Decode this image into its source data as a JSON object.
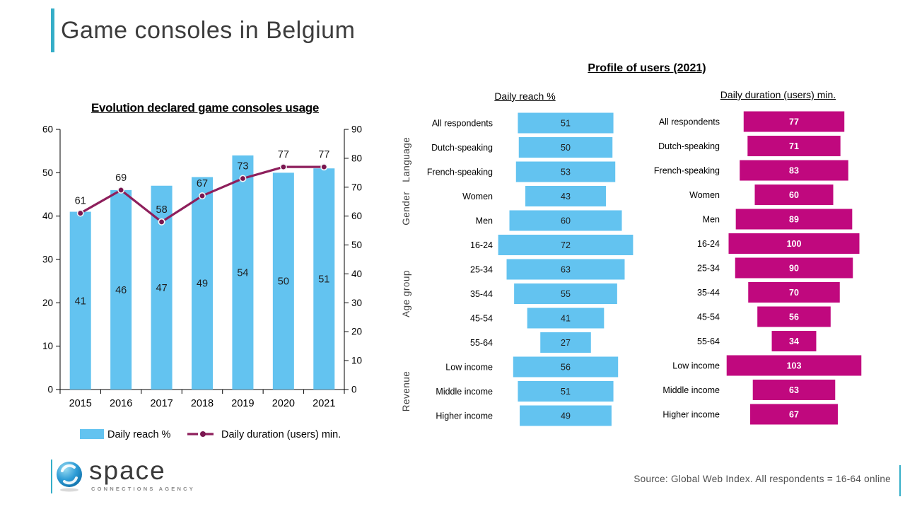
{
  "slide": {
    "title": "Game consoles in Belgium",
    "source": "Source: Global Web Index. All respondents = 16-64 online",
    "logo": {
      "name": "space",
      "tagline": "CONNECTIONS AGENCY"
    }
  },
  "profile": {
    "title": "Profile of users (2021)"
  },
  "colors": {
    "accent_teal": "#35aec8",
    "bar_blue": "#63c3f0",
    "bar_magenta": "#c0087e",
    "line_purple": "#8e1f5c",
    "marker_fill": "#7a1650",
    "value_dark": "#1f1f1f",
    "value_light": "#ffffff"
  },
  "chart_data": [
    {
      "type": "bar",
      "subtype": "combo-bar-line",
      "title": "Evolution declared game consoles usage",
      "categories": [
        "2015",
        "2016",
        "2017",
        "2018",
        "2019",
        "2020",
        "2021"
      ],
      "series": [
        {
          "name": "Daily reach %",
          "kind": "bar",
          "axis": "left",
          "color": "#63c3f0",
          "values": [
            41,
            46,
            47,
            49,
            54,
            50,
            51
          ]
        },
        {
          "name": "Daily duration (users) min.",
          "kind": "line",
          "axis": "right",
          "color": "#8e1f5c",
          "values": [
            61,
            69,
            58,
            67,
            73,
            77,
            77
          ]
        }
      ],
      "left_axis": {
        "min": 0,
        "max": 60,
        "step": 10
      },
      "right_axis": {
        "min": 0,
        "max": 90,
        "step": 10
      },
      "grid": false,
      "legend_position": "bottom"
    },
    {
      "type": "bar",
      "subtype": "horizontal-centered",
      "title": "Daily reach %",
      "color": "#63c3f0",
      "categories": [
        "All respondents",
        "Dutch-speaking",
        "French-speaking",
        "Women",
        "Men",
        "16-24",
        "25-34",
        "35-44",
        "45-54",
        "55-64",
        "Low income",
        "Middle income",
        "Higher income"
      ],
      "values": [
        51,
        50,
        53,
        43,
        60,
        72,
        63,
        55,
        41,
        27,
        56,
        51,
        49
      ],
      "groups": [
        {
          "label": "Language",
          "rows": [
            1,
            2
          ]
        },
        {
          "label": "Gender",
          "rows": [
            3,
            4
          ]
        },
        {
          "label": "Age group",
          "rows": [
            5,
            9
          ]
        },
        {
          "label": "Revenue",
          "rows": [
            10,
            12
          ]
        }
      ]
    },
    {
      "type": "bar",
      "subtype": "horizontal-centered",
      "title": "Daily duration (users) min.",
      "color": "#c0087e",
      "categories": [
        "All respondents",
        "Dutch-speaking",
        "French-speaking",
        "Women",
        "Men",
        "16-24",
        "25-34",
        "35-44",
        "45-54",
        "55-64",
        "Low income",
        "Middle income",
        "Higher income"
      ],
      "values": [
        77,
        71,
        83,
        60,
        89,
        100,
        90,
        70,
        56,
        34,
        103,
        63,
        67
      ]
    }
  ]
}
